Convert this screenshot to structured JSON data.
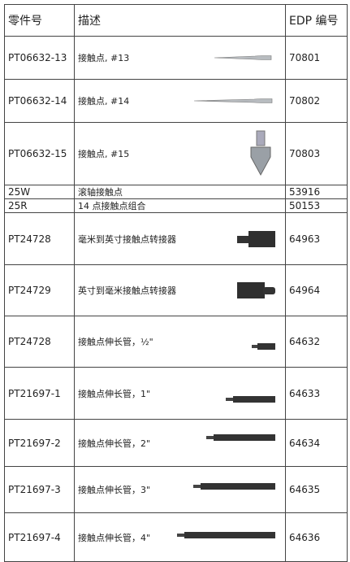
{
  "table": {
    "header": [
      "零件号",
      "描述",
      "EDP 编号"
    ],
    "rows": [
      [
        "PT06632-13",
        "接触点, #13",
        "70801"
      ],
      [
        "PT06632-14",
        "接触点, #14",
        "70802"
      ],
      [
        "PT06632-15",
        "接触点, #15",
        "70803"
      ],
      [
        "25W",
        "滚轴接触点",
        "53916"
      ],
      [
        "25R",
        "14 点接触点组合",
        "50153"
      ],
      [
        "PT24728",
        "毫米到英寸接触点转接器",
        "64963"
      ],
      [
        "PT24729",
        "英寸到毫米接触点转接器",
        "64964"
      ],
      [
        "PT24728",
        "接触点伸长管，½\"",
        "64632"
      ],
      [
        "PT21697-1",
        "接触点伸长管，1\"",
        "64633"
      ],
      [
        "PT21697-2",
        "接触点伸长管，2\"",
        "64634"
      ],
      [
        "PT21697-3",
        "接触点伸长管，3\"",
        "64635"
      ],
      [
        "PT21697-4",
        "接触点伸长管，4\"",
        "64636"
      ]
    ]
  }
}
